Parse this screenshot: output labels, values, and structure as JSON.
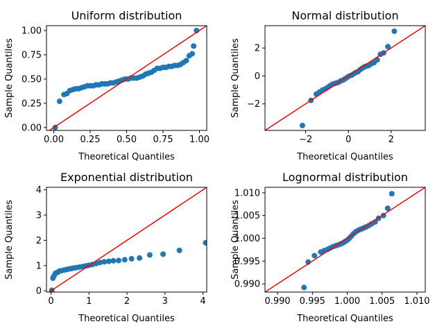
{
  "chart_data": [
    {
      "type": "scatter",
      "title": "Uniform distribution",
      "xlabel": "Theoretical Quantiles",
      "ylabel": "Sample Quantiles",
      "xlim": [
        -0.05,
        1.05
      ],
      "ylim": [
        -0.03,
        1.05
      ],
      "xticks": [
        0.0,
        0.25,
        0.5,
        0.75,
        1.0
      ],
      "xtick_labels": [
        "0.00",
        "0.25",
        "0.50",
        "0.75",
        "1.00"
      ],
      "yticks": [
        0.0,
        0.25,
        0.5,
        0.75,
        1.0
      ],
      "ytick_labels": [
        "0.00",
        "0.25",
        "0.50",
        "0.75",
        "1.00"
      ],
      "reference_line": {
        "slope": 1,
        "intercept": 0,
        "color": "#ff0000"
      },
      "marker_color": "#1f77b4",
      "points": [
        [
          0.01,
          0.0
        ],
        [
          0.04,
          0.27
        ],
        [
          0.07,
          0.34
        ],
        [
          0.09,
          0.35
        ],
        [
          0.11,
          0.38
        ],
        [
          0.13,
          0.39
        ],
        [
          0.15,
          0.4
        ],
        [
          0.17,
          0.4
        ],
        [
          0.19,
          0.41
        ],
        [
          0.21,
          0.42
        ],
        [
          0.23,
          0.43
        ],
        [
          0.25,
          0.43
        ],
        [
          0.27,
          0.43
        ],
        [
          0.29,
          0.44
        ],
        [
          0.31,
          0.44
        ],
        [
          0.33,
          0.45
        ],
        [
          0.35,
          0.45
        ],
        [
          0.37,
          0.45
        ],
        [
          0.39,
          0.46
        ],
        [
          0.41,
          0.46
        ],
        [
          0.43,
          0.47
        ],
        [
          0.45,
          0.48
        ],
        [
          0.47,
          0.49
        ],
        [
          0.49,
          0.5
        ],
        [
          0.51,
          0.5
        ],
        [
          0.53,
          0.51
        ],
        [
          0.55,
          0.51
        ],
        [
          0.57,
          0.51
        ],
        [
          0.59,
          0.52
        ],
        [
          0.61,
          0.53
        ],
        [
          0.63,
          0.55
        ],
        [
          0.65,
          0.56
        ],
        [
          0.67,
          0.57
        ],
        [
          0.69,
          0.59
        ],
        [
          0.71,
          0.61
        ],
        [
          0.73,
          0.61
        ],
        [
          0.75,
          0.62
        ],
        [
          0.77,
          0.62
        ],
        [
          0.79,
          0.63
        ],
        [
          0.81,
          0.63
        ],
        [
          0.83,
          0.64
        ],
        [
          0.85,
          0.64
        ],
        [
          0.87,
          0.65
        ],
        [
          0.89,
          0.67
        ],
        [
          0.91,
          0.69
        ],
        [
          0.93,
          0.74
        ],
        [
          0.95,
          0.76
        ],
        [
          0.96,
          0.84
        ],
        [
          0.98,
          1.0
        ]
      ]
    },
    {
      "type": "scatter",
      "title": "Normal distribution",
      "xlabel": "Theoretical Quantiles",
      "ylabel": "Sample Quantiles",
      "xlim": [
        -3.9,
        3.6
      ],
      "ylim": [
        -3.9,
        3.6
      ],
      "xticks": [
        -2,
        0,
        2
      ],
      "xtick_labels": [
        "−2",
        "0",
        "2"
      ],
      "yticks": [
        -2,
        0,
        2
      ],
      "ytick_labels": [
        "−2",
        "0",
        "2"
      ],
      "reference_line": {
        "slope": 1,
        "intercept": 0,
        "color": "#ff0000"
      },
      "marker_color": "#1f77b4",
      "points": [
        [
          -2.15,
          -3.55
        ],
        [
          -1.75,
          -1.75
        ],
        [
          -1.5,
          -1.3
        ],
        [
          -1.35,
          -1.15
        ],
        [
          -1.2,
          -1.0
        ],
        [
          -1.05,
          -0.9
        ],
        [
          -0.95,
          -0.8
        ],
        [
          -0.85,
          -0.7
        ],
        [
          -0.75,
          -0.6
        ],
        [
          -0.65,
          -0.55
        ],
        [
          -0.55,
          -0.5
        ],
        [
          -0.45,
          -0.45
        ],
        [
          -0.35,
          -0.35
        ],
        [
          -0.25,
          -0.3
        ],
        [
          -0.15,
          -0.2
        ],
        [
          -0.05,
          -0.1
        ],
        [
          0.05,
          0.0
        ],
        [
          0.15,
          0.05
        ],
        [
          0.25,
          0.15
        ],
        [
          0.35,
          0.25
        ],
        [
          0.45,
          0.3
        ],
        [
          0.55,
          0.45
        ],
        [
          0.65,
          0.55
        ],
        [
          0.75,
          0.65
        ],
        [
          0.85,
          0.7
        ],
        [
          0.95,
          0.75
        ],
        [
          1.05,
          0.85
        ],
        [
          1.2,
          0.95
        ],
        [
          1.35,
          1.15
        ],
        [
          1.5,
          1.55
        ],
        [
          1.65,
          1.65
        ],
        [
          1.85,
          2.1
        ],
        [
          2.15,
          3.2
        ]
      ]
    },
    {
      "type": "scatter",
      "title": "Exponential distribution",
      "xlabel": "Theoretical Quantiles",
      "ylabel": "Sample Quantiles",
      "xlim": [
        -0.12,
        4.1
      ],
      "ylim": [
        -0.05,
        4.1
      ],
      "xticks": [
        0,
        1,
        2,
        3,
        4
      ],
      "xtick_labels": [
        "0",
        "1",
        "2",
        "3",
        "4"
      ],
      "yticks": [
        0,
        1,
        2,
        3,
        4
      ],
      "ytick_labels": [
        "0",
        "1",
        "2",
        "3",
        "4"
      ],
      "reference_line": {
        "slope": 1,
        "intercept": 0,
        "color": "#ff0000"
      },
      "marker_color": "#1f77b4",
      "points": [
        [
          0.02,
          0.02
        ],
        [
          0.05,
          0.5
        ],
        [
          0.08,
          0.6
        ],
        [
          0.12,
          0.7
        ],
        [
          0.17,
          0.73
        ],
        [
          0.22,
          0.78
        ],
        [
          0.28,
          0.8
        ],
        [
          0.34,
          0.82
        ],
        [
          0.4,
          0.84
        ],
        [
          0.46,
          0.86
        ],
        [
          0.53,
          0.88
        ],
        [
          0.6,
          0.9
        ],
        [
          0.67,
          0.92
        ],
        [
          0.75,
          0.94
        ],
        [
          0.83,
          0.96
        ],
        [
          0.92,
          0.99
        ],
        [
          1.0,
          1.01
        ],
        [
          1.09,
          1.04
        ],
        [
          1.19,
          1.08
        ],
        [
          1.29,
          1.12
        ],
        [
          1.4,
          1.15
        ],
        [
          1.52,
          1.17
        ],
        [
          1.64,
          1.19
        ],
        [
          1.78,
          1.2
        ],
        [
          1.94,
          1.23
        ],
        [
          2.12,
          1.27
        ],
        [
          2.33,
          1.3
        ],
        [
          2.6,
          1.42
        ],
        [
          2.95,
          1.45
        ],
        [
          3.38,
          1.6
        ],
        [
          4.07,
          1.9
        ]
      ]
    },
    {
      "type": "scatter",
      "title": "Lognormal distribution",
      "xlabel": "Theoretical Quantiles",
      "ylabel": "Sample Quantiles",
      "xlim": [
        0.9882,
        1.0112
      ],
      "ylim": [
        0.9882,
        1.0112
      ],
      "xticks": [
        0.99,
        0.995,
        1.0,
        1.005,
        1.01
      ],
      "xtick_labels": [
        "0.990",
        "0.995",
        "1.000",
        "1.005",
        "1.010"
      ],
      "yticks": [
        0.99,
        0.995,
        1.0,
        1.005,
        1.01
      ],
      "ytick_labels": [
        "0.990",
        "0.995",
        "1.000",
        "1.005",
        "1.010"
      ],
      "reference_line": {
        "slope": 1,
        "intercept": 0,
        "color": "#ff0000"
      },
      "marker_color": "#1f77b4",
      "points": [
        [
          0.9938,
          0.9892
        ],
        [
          0.9944,
          0.9948
        ],
        [
          0.9953,
          0.9962
        ],
        [
          0.9962,
          0.997
        ],
        [
          0.9967,
          0.9973
        ],
        [
          0.9972,
          0.9976
        ],
        [
          0.9976,
          0.9979
        ],
        [
          0.998,
          0.9982
        ],
        [
          0.9984,
          0.9984
        ],
        [
          0.9988,
          0.9986
        ],
        [
          0.9991,
          0.9988
        ],
        [
          0.9994,
          0.999
        ],
        [
          0.9997,
          0.9993
        ],
        [
          1.0,
          0.9996
        ],
        [
          1.0003,
          1.0
        ],
        [
          1.0006,
          1.0005
        ],
        [
          1.0009,
          1.001
        ],
        [
          1.0012,
          1.0014
        ],
        [
          1.0015,
          1.0017
        ],
        [
          1.0018,
          1.0019
        ],
        [
          1.0021,
          1.0021
        ],
        [
          1.0024,
          1.0023
        ],
        [
          1.0027,
          1.0025
        ],
        [
          1.0031,
          1.0028
        ],
        [
          1.0035,
          1.0032
        ],
        [
          1.004,
          1.0036
        ],
        [
          1.0045,
          1.0044
        ],
        [
          1.0052,
          1.005
        ],
        [
          1.0058,
          1.0066
        ],
        [
          1.0064,
          1.0098
        ]
      ]
    }
  ]
}
